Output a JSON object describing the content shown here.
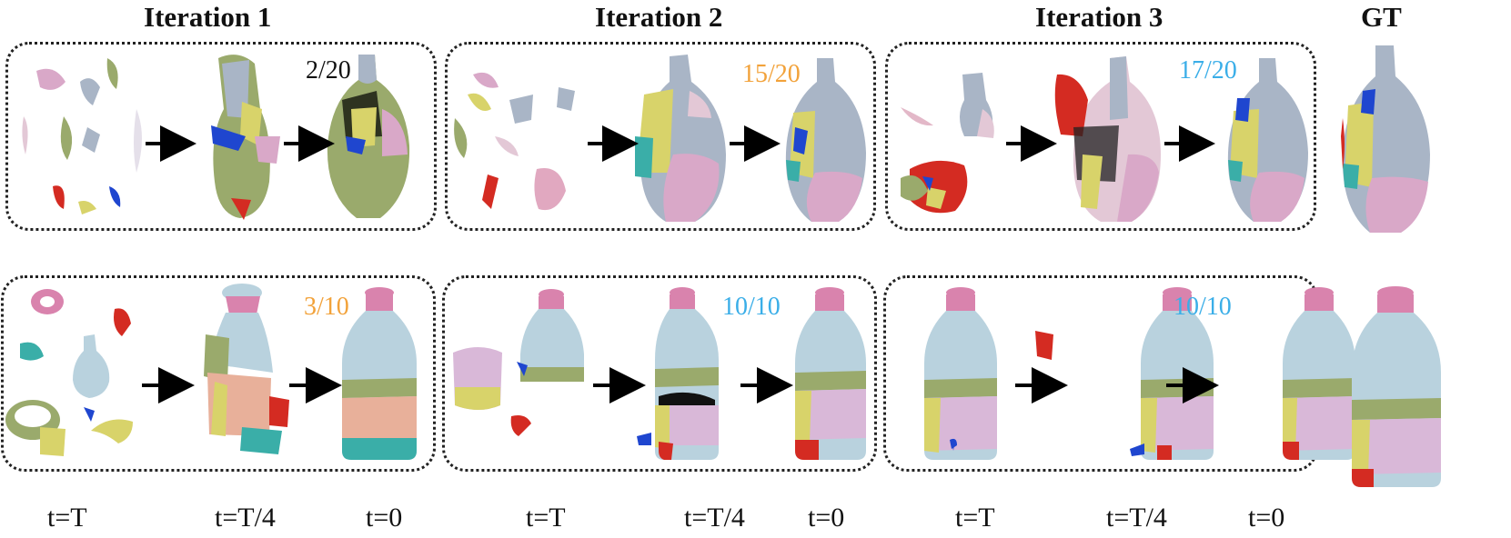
{
  "headers": {
    "iter1": "Iteration 1",
    "iter2": "Iteration 2",
    "iter3": "Iteration 3",
    "gt": "GT"
  },
  "scores": {
    "row1": [
      "2/20",
      "15/20",
      "17/20"
    ],
    "row2": [
      "3/10",
      "10/10",
      "10/10"
    ]
  },
  "time_labels": [
    "t=T",
    "t=T/4",
    "t=0",
    "t=T",
    "t=T/4",
    "t=0",
    "t=T",
    "t=T/4",
    "t=0"
  ],
  "colors": {
    "score_black": "#111111",
    "score_orange": "#f2a23a",
    "score_blue": "#3aaee8",
    "vase_gray": "#a9b5c6",
    "bottle_blue": "#b9d2de",
    "piece_pink": "#d9a8c8",
    "piece_yellow": "#d8d36a",
    "piece_olive": "#9aaa6c",
    "piece_red": "#d42b22",
    "piece_blue": "#1f46cf",
    "piece_teal": "#3aaea8",
    "bottle_neck": "#d983ad"
  }
}
